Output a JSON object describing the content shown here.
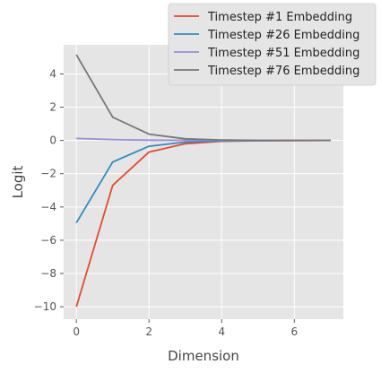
{
  "chart_data": {
    "type": "line",
    "title": "",
    "xlabel": "Dimension",
    "ylabel": "Logit",
    "x": [
      0,
      1,
      2,
      3,
      4,
      5,
      6,
      7
    ],
    "xlim": [
      -0.35,
      7.35
    ],
    "ylim": [
      -10.75,
      5.75
    ],
    "xticks": [
      0,
      2,
      4,
      6
    ],
    "yticks": [
      -10,
      -8,
      -6,
      -4,
      -2,
      0,
      2,
      4
    ],
    "ytick_labels": [
      "−10",
      "−8",
      "−6",
      "−4",
      "−2",
      "0",
      "2",
      "4"
    ],
    "grid": true,
    "legend_position": "top-right",
    "series": [
      {
        "name": "Timestep #1 Embedding",
        "color": "#E24A33",
        "values": [
          -10.0,
          -2.7,
          -0.7,
          -0.2,
          -0.05,
          -0.02,
          -0.01,
          0.0
        ]
      },
      {
        "name": "Timestep #26 Embedding",
        "color": "#348ABD",
        "values": [
          -4.95,
          -1.3,
          -0.35,
          -0.1,
          -0.03,
          -0.01,
          0.0,
          0.0
        ]
      },
      {
        "name": "Timestep #51 Embedding",
        "color": "#988ED5",
        "values": [
          0.12,
          0.05,
          0.02,
          0.01,
          0.0,
          0.0,
          0.0,
          0.0
        ]
      },
      {
        "name": "Timestep #76 Embedding",
        "color": "#777777",
        "values": [
          5.15,
          1.4,
          0.38,
          0.1,
          0.03,
          0.01,
          0.0,
          0.0
        ]
      }
    ]
  }
}
